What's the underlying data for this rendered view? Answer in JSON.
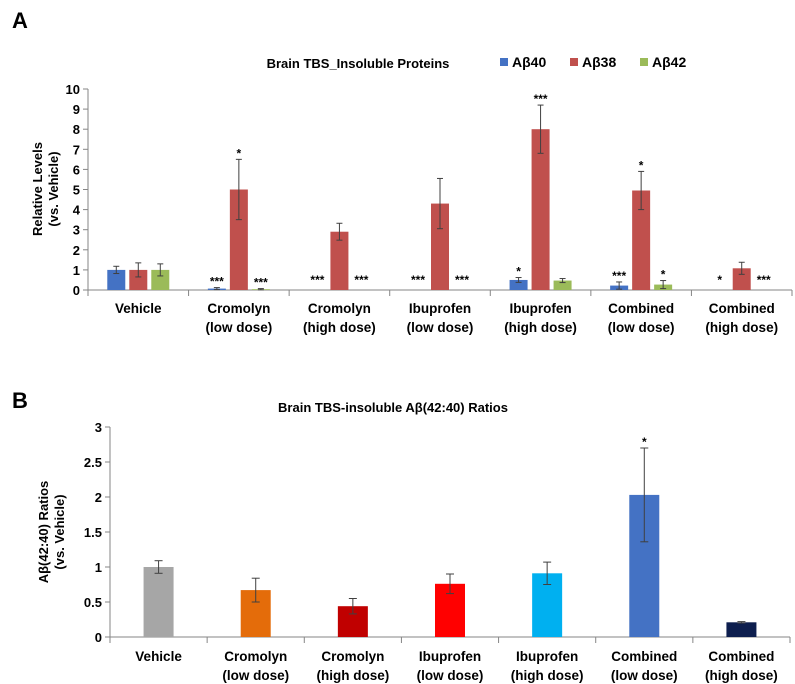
{
  "chart_data": [
    {
      "type": "bar",
      "panel": "A",
      "title": "Brain TBS_Insoluble  Proteins",
      "ylabel": [
        "Relative Levels",
        "(vs. Vehicle)"
      ],
      "ylim": [
        0,
        10
      ],
      "yticks": [
        0,
        1,
        2,
        3,
        4,
        5,
        6,
        7,
        8,
        9,
        10
      ],
      "grid": false,
      "legend_position": "top-right",
      "categories": [
        [
          "Vehicle"
        ],
        [
          "Cromolyn",
          "(low dose)"
        ],
        [
          "Cromolyn",
          "(high dose)"
        ],
        [
          "Ibuprofen",
          "(low dose)"
        ],
        [
          "Ibuprofen",
          "(high dose)"
        ],
        [
          "Combined",
          "(low dose)"
        ],
        [
          "Combined",
          "(high dose)"
        ]
      ],
      "series": [
        {
          "name": "Aβ40",
          "color": "#4472c4",
          "values": [
            1.0,
            0.07,
            0,
            0,
            0.5,
            0.22,
            0
          ],
          "errors": [
            0.18,
            0.05,
            0,
            0,
            0.12,
            0.18,
            0
          ],
          "sig": [
            "",
            "***",
            "***",
            "***",
            "*",
            "***",
            "*"
          ]
        },
        {
          "name": "Aβ38",
          "color": "#c0504d",
          "values": [
            1.0,
            5.0,
            2.9,
            4.3,
            8.0,
            4.95,
            1.08
          ],
          "errors": [
            0.35,
            1.5,
            0.42,
            1.25,
            1.2,
            0.95,
            0.3
          ],
          "sig": [
            "",
            "*",
            "",
            "",
            "***",
            "*",
            ""
          ]
        },
        {
          "name": "Aβ42",
          "color": "#9bbb59",
          "values": [
            1.0,
            0.04,
            0,
            0,
            0.47,
            0.27,
            0
          ],
          "errors": [
            0.3,
            0.03,
            0,
            0,
            0.1,
            0.2,
            0
          ],
          "sig": [
            "",
            "***",
            "***",
            "***",
            "",
            "*",
            "***"
          ]
        }
      ]
    },
    {
      "type": "bar",
      "panel": "B",
      "title": "Brain TBS-insoluble Aβ(42:40) Ratios",
      "ylabel": [
        "Aβ(42:40) Ratios",
        "(vs. Vehicle)"
      ],
      "ylim": [
        0,
        3
      ],
      "yticks": [
        "0",
        "0.5",
        "1",
        "1.5",
        "2",
        "2.5",
        "3"
      ],
      "grid": false,
      "categories": [
        [
          "Vehicle"
        ],
        [
          "Cromolyn",
          "(low dose)"
        ],
        [
          "Cromolyn",
          "(high dose)"
        ],
        [
          "Ibuprofen",
          "(low dose)"
        ],
        [
          "Ibuprofen",
          "(high dose)"
        ],
        [
          "Combined",
          "(low dose)"
        ],
        [
          "Combined",
          "(high dose)"
        ]
      ],
      "values": [
        1.0,
        0.67,
        0.44,
        0.76,
        0.91,
        2.03,
        0.21
      ],
      "errors": [
        0.09,
        0.17,
        0.11,
        0.14,
        0.16,
        0.67,
        0.01
      ],
      "colors": [
        "#a6a6a6",
        "#e46c0a",
        "#c00000",
        "#ff0000",
        "#00b0f0",
        "#4472c4",
        "#0d1e4e"
      ],
      "sig": [
        "",
        "",
        "",
        "",
        "",
        "*",
        ""
      ]
    }
  ]
}
